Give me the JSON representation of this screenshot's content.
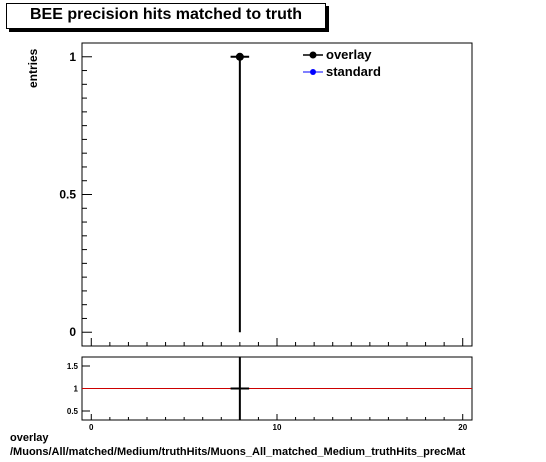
{
  "title": "BEE precision hits matched to truth",
  "ylabel": "entries",
  "legend": {
    "overlay": "overlay",
    "standard": "standard"
  },
  "footer": {
    "line1": "overlay",
    "line2": "/Muons/All/matched/Medium/truthHits/Muons_All_matched_Medium_truthHits_precMat"
  },
  "colors": {
    "overlay": "#000000",
    "standard": "#0000ff",
    "ratio_line": "#cc0000"
  },
  "chart_data": [
    {
      "type": "scatter",
      "title": "BEE precision hits matched to truth",
      "ylabel": "entries",
      "xlim": [
        -0.5,
        20.5
      ],
      "ylim": [
        -0.05,
        1.05
      ],
      "y_ticks": [
        "0",
        "0.5",
        "1"
      ],
      "series": [
        {
          "name": "overlay",
          "x": [
            8
          ],
          "y": [
            1
          ],
          "yerr_low": [
            1
          ],
          "xerr": [
            0.5
          ]
        },
        {
          "name": "standard",
          "x": [],
          "y": []
        }
      ],
      "legend_position": "top-right"
    },
    {
      "type": "line",
      "xlim": [
        -0.5,
        20.5
      ],
      "ylim": [
        0.3,
        1.7
      ],
      "x_ticks": [
        "0",
        "10",
        "20"
      ],
      "y_ticks": [
        "0.5",
        "1",
        "1.5"
      ],
      "reference_y": 1,
      "points": [
        {
          "x": 8,
          "y": 1,
          "xerr": 0.5
        }
      ]
    }
  ]
}
